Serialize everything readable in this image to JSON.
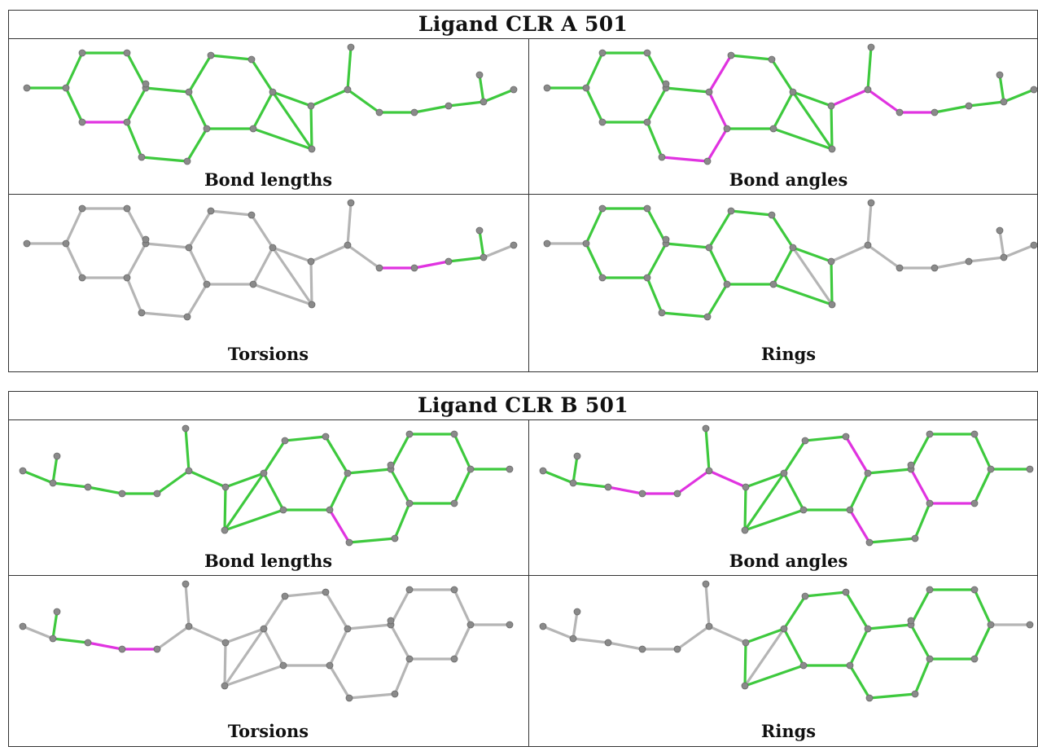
{
  "figure": {
    "panels": [
      {
        "id": "A",
        "title": "Ligand CLR A 501",
        "flip": false,
        "cells": [
          {
            "caption": "Bond lengths",
            "bond_colors": {
              "default": "#3ec93e",
              "highlight": "#e033e0"
            },
            "highlight_bonds": [
              [
                5,
                6
              ]
            ],
            "mode": "all"
          },
          {
            "caption": "Bond angles",
            "bond_colors": {
              "default": "#3ec93e",
              "highlight": "#e033e0"
            },
            "highlight_bonds": [
              [
                8,
                9
              ],
              [
                9,
                10
              ],
              [
                10,
                11
              ],
              [
                11,
                12
              ],
              [
                6,
                11
              ],
              [
                18,
                20
              ],
              [
                20,
                21
              ],
              [
                21,
                22
              ]
            ],
            "mode": "all"
          },
          {
            "caption": "Torsions",
            "bond_colors": {
              "default": "#b5b5b5",
              "green": "#3ec93e",
              "highlight": "#e033e0"
            },
            "green_bonds": [
              [
                18,
                19
              ],
              [
                23,
                24
              ],
              [
                24,
                25
              ]
            ],
            "highlight_bonds": [
              [
                19,
                21
              ],
              [
                21,
                22
              ],
              [
                22,
                23
              ]
            ],
            "mode": "torsion"
          },
          {
            "caption": "Rings",
            "bond_colors": {
              "default": "#b5b5b5",
              "ring": "#3ec93e"
            },
            "highlight_bonds": [],
            "mode": "rings"
          }
        ]
      },
      {
        "id": "B",
        "title": "Ligand CLR B 501",
        "flip": true,
        "cells": [
          {
            "caption": "Bond lengths",
            "bond_colors": {
              "default": "#3ec93e",
              "highlight": "#e033e0"
            },
            "highlight_bonds": [
              [
                9,
                10
              ],
              [
                16,
                17
              ]
            ],
            "mode": "all"
          },
          {
            "caption": "Bond angles",
            "bond_colors": {
              "default": "#3ec93e",
              "highlight": "#e033e0"
            },
            "highlight_bonds": [
              [
                9,
                10
              ],
              [
                11,
                12
              ],
              [
                6,
                11
              ],
              [
                5,
                6
              ],
              [
                4,
                5
              ],
              [
                16,
                17
              ],
              [
                18,
                20
              ],
              [
                20,
                21
              ],
              [
                21,
                22
              ],
              [
                22,
                23
              ],
              [
                18,
                19
              ]
            ],
            "mode": "all"
          },
          {
            "caption": "Torsions",
            "bond_colors": {
              "default": "#b5b5b5",
              "green": "#3ec93e",
              "highlight": "#e033e0"
            },
            "green_bonds": [
              [
                18,
                19
              ],
              [
                23,
                24
              ],
              [
                24,
                25
              ]
            ],
            "highlight_bonds": [
              [
                21,
                22
              ],
              [
                22,
                23
              ]
            ],
            "mode": "torsion"
          },
          {
            "caption": "Rings",
            "bond_colors": {
              "default": "#b5b5b5",
              "ring": "#3ec93e"
            },
            "highlight_bonds": [],
            "mode": "rings"
          }
        ]
      }
    ],
    "atom_color": "#8a8a8a"
  }
}
